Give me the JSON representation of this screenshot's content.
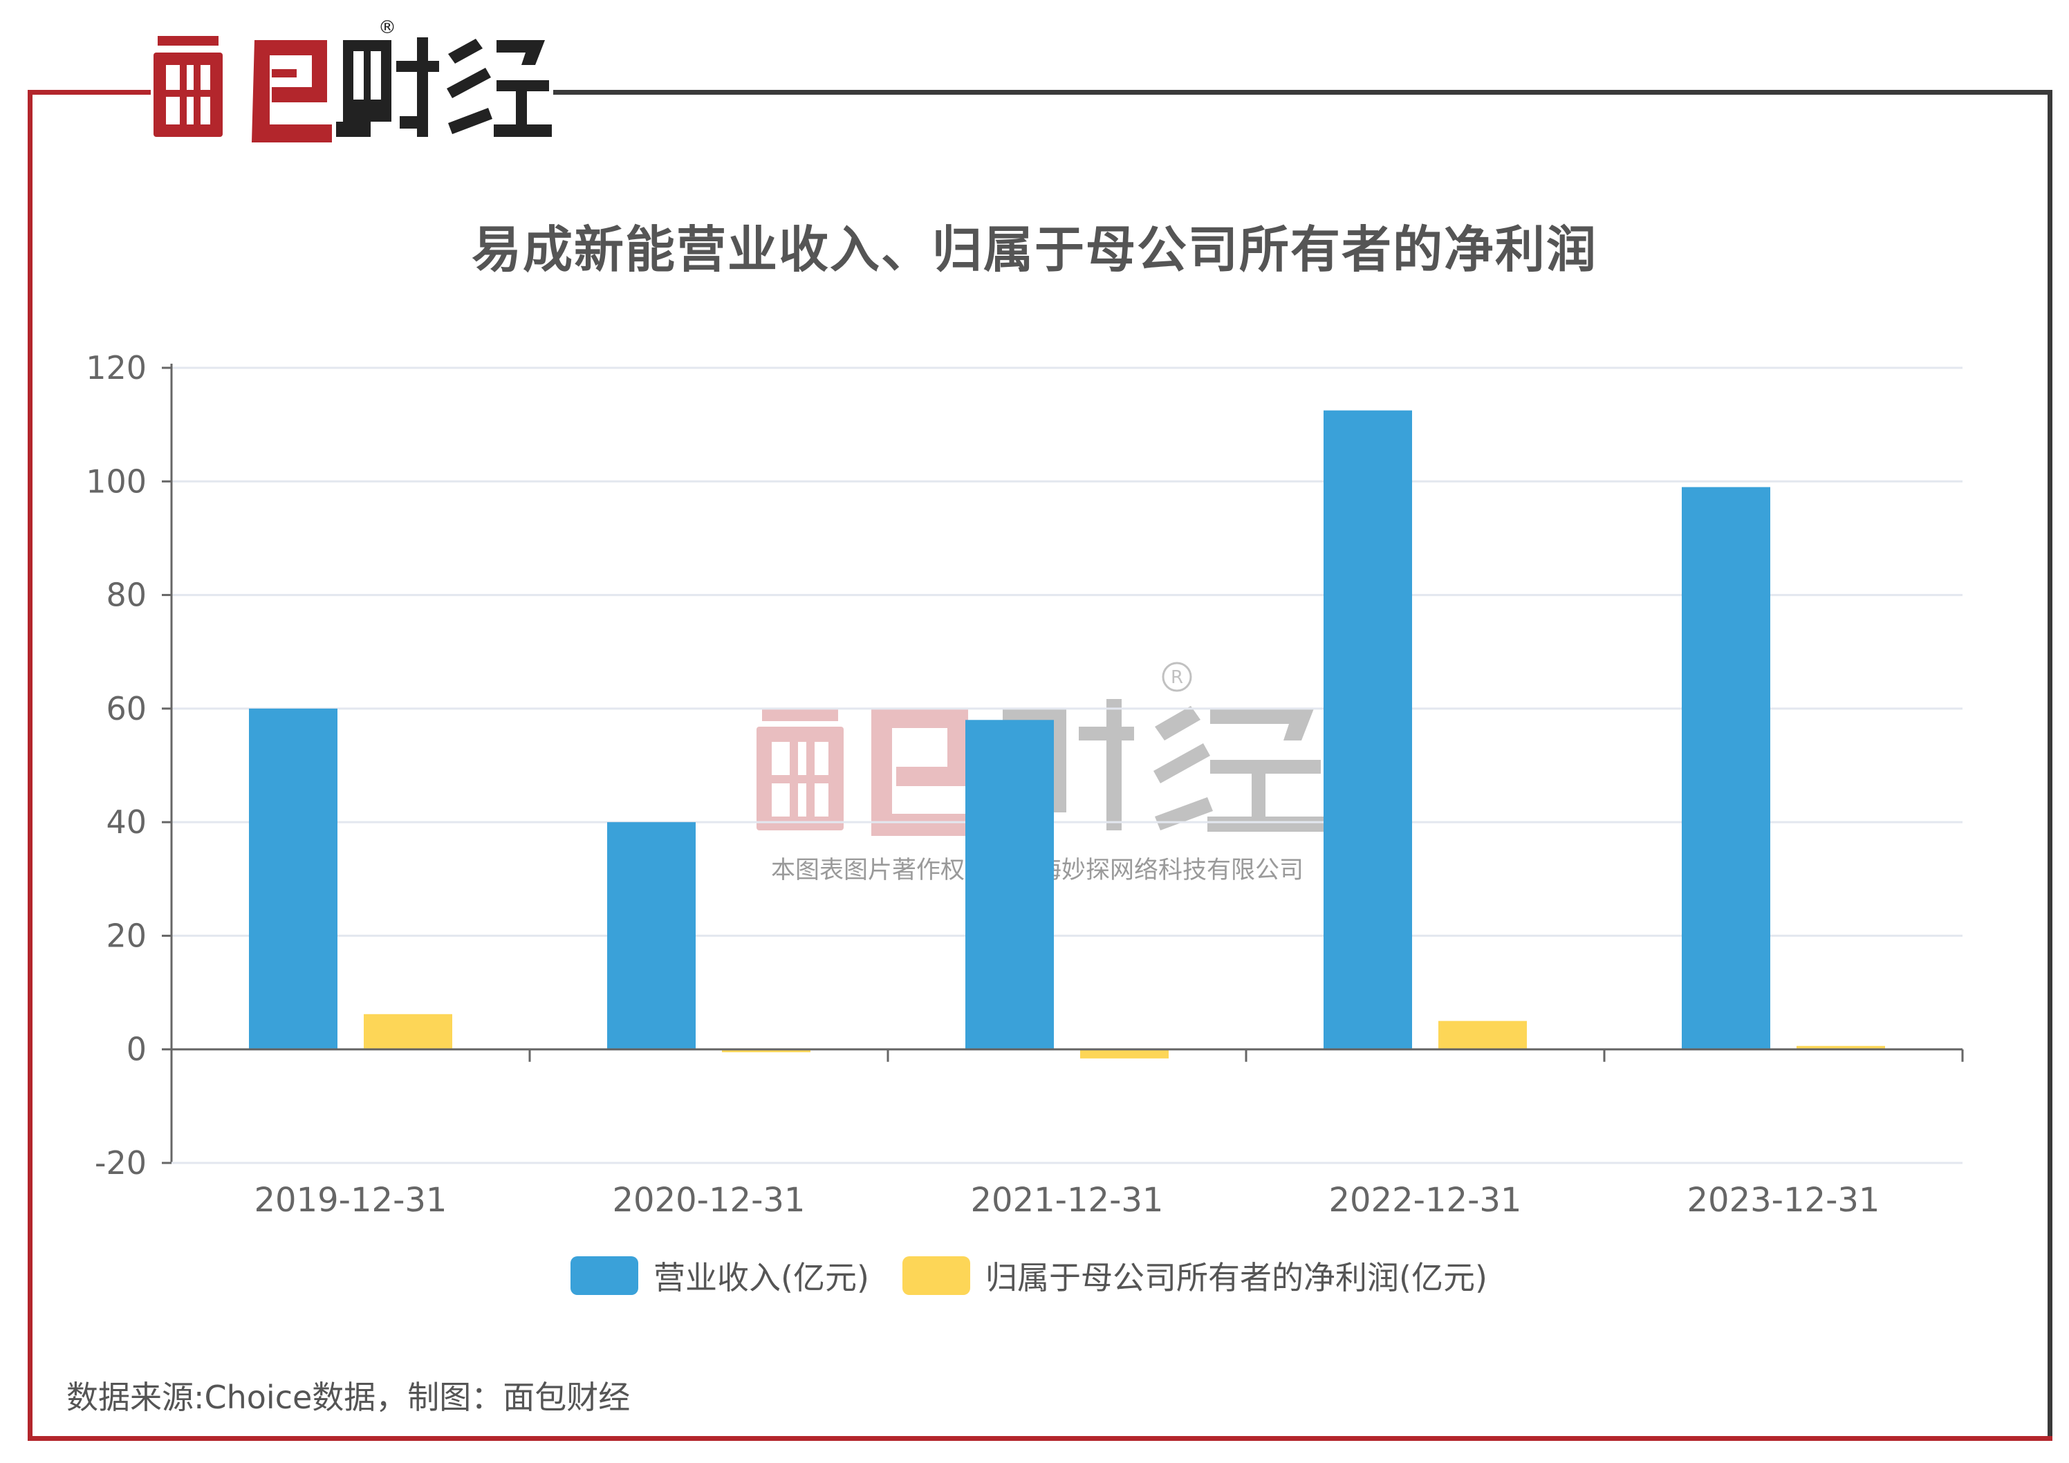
{
  "brand": {
    "name": "面包财经",
    "registered_mark": "®"
  },
  "watermark": {
    "brand": "面包财经",
    "caption": "本图表图片著作权属于上海妙探网络科技有限公司"
  },
  "source_note": "数据来源:Choice数据，制图：面包财经",
  "colors": {
    "accent_red": "#b3262c",
    "revenue": "#3aa1d9",
    "net_profit": "#fdd657"
  },
  "chart_data": {
    "type": "bar",
    "title": "易成新能营业收入、归属于母公司所有者的净利润",
    "categories": [
      "2019-12-31",
      "2020-12-31",
      "2021-12-31",
      "2022-12-31",
      "2023-12-31"
    ],
    "series": [
      {
        "name": "营业收入(亿元)",
        "color": "#3aa1d9",
        "values": [
          60,
          40,
          58,
          112.5,
          99
        ]
      },
      {
        "name": "归属于母公司所有者的净利润(亿元)",
        "color": "#fdd657",
        "values": [
          6.2,
          -0.5,
          -1.6,
          5,
          0.6
        ]
      }
    ],
    "ylim": [
      -20,
      120
    ],
    "yticks": [
      "120",
      "100",
      "80",
      "60",
      "40",
      "20",
      "0",
      "-20"
    ],
    "grid": true,
    "legend_position": "bottom-center"
  }
}
